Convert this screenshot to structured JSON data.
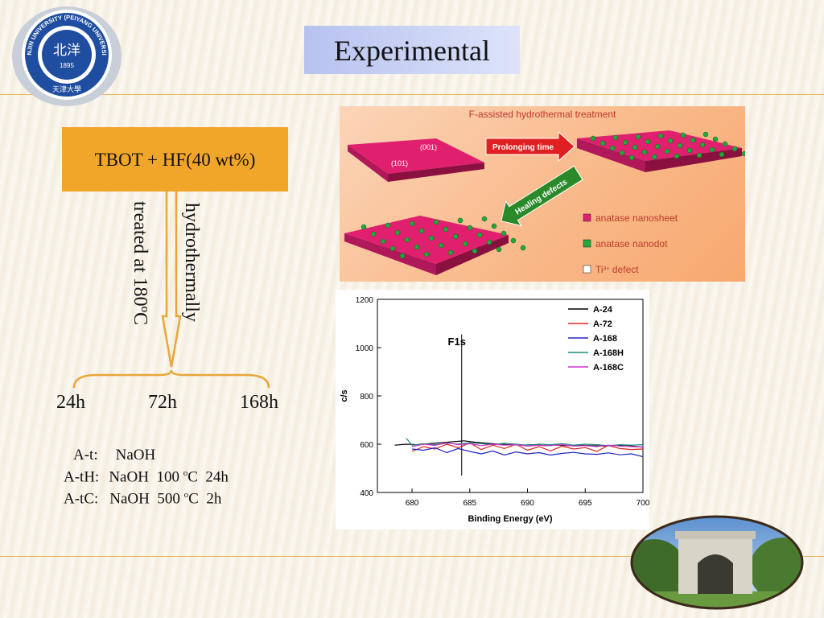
{
  "slide": {
    "title": "Experimental"
  },
  "logo": {
    "icon": "university-seal-icon",
    "text_top": "TIANJIN UNIVERSITY (PEIYANG UNIVERSITY)",
    "text_center": "北洋",
    "year": "1895",
    "text_bottom": "天津大學"
  },
  "flow": {
    "recipe": "TBOT + HF(40 wt%)",
    "condition_right": "hydrothermally",
    "condition_left": "treated at 180ºC",
    "times": [
      "24h",
      "72h",
      "168h"
    ]
  },
  "samples": [
    {
      "name": "A-t:",
      "treatment": "NaOH",
      "temp": "",
      "unit": "",
      "time": ""
    },
    {
      "name": "A-tH:",
      "treatment": "NaOH",
      "temp": "100",
      "unit": "C",
      "time": "24h"
    },
    {
      "name": "A-tC:",
      "treatment": "NaOH",
      "temp": "500",
      "unit": "C",
      "time": "2h"
    }
  ],
  "scheme": {
    "title": "F-assisted hydrothermal treatment",
    "facet_top": "(001)",
    "facet_side": "(101)",
    "arrow_forward": "Prolonging time",
    "arrow_back": "Healing defects",
    "legend": [
      {
        "label": "anatase nanosheet",
        "color": "#e0206e"
      },
      {
        "label": "anatase nanodot",
        "color": "#22a83a"
      },
      {
        "label": "Ti",
        "sup": "3+",
        "suffix": " defect",
        "color": "#ffffff"
      }
    ]
  },
  "chart_data": {
    "type": "line",
    "xlabel": "Binding Energy (eV)",
    "ylabel": "c/s",
    "xlim": [
      677,
      700
    ],
    "ylim": [
      400,
      1200
    ],
    "xticks": [
      680,
      685,
      690,
      695,
      700
    ],
    "yticks": [
      400,
      600,
      800,
      1000,
      1200
    ],
    "annotation": {
      "text": "F1s",
      "x": 684.3
    },
    "legend_position": "top-right",
    "series": [
      {
        "name": "A-24",
        "color": "#000000",
        "x": [
          678.5,
          679.5,
          680.5,
          681.5,
          682.5,
          683.5,
          684.5,
          685.5,
          686.5,
          687.5,
          688.5,
          689.5,
          690.5,
          691.5,
          692.5,
          693.5,
          694.5,
          695.5,
          696.5,
          697.5,
          698.5,
          699.5,
          700
        ],
        "y": [
          596,
          600,
          598,
          602,
          606,
          610,
          614,
          608,
          604,
          600,
          598,
          596,
          598,
          594,
          596,
          594,
          596,
          594,
          592,
          594,
          596,
          590,
          588
        ]
      },
      {
        "name": "A-72",
        "color": "#e02020",
        "x": [
          680,
          681,
          682,
          683,
          684,
          685,
          686,
          687,
          688,
          689,
          690,
          691,
          692,
          693,
          694,
          695,
          696,
          697,
          698,
          699,
          700
        ],
        "y": [
          570,
          590,
          580,
          600,
          585,
          605,
          578,
          596,
          582,
          600,
          575,
          590,
          572,
          592,
          580,
          586,
          570,
          595,
          582,
          578,
          580
        ]
      },
      {
        "name": "A-168",
        "color": "#2020c0",
        "x": [
          680,
          681,
          682,
          683,
          684,
          685,
          686,
          687,
          688,
          689,
          690,
          691,
          692,
          693,
          694,
          695,
          696,
          697,
          698,
          699,
          700
        ],
        "y": [
          580,
          575,
          585,
          565,
          582,
          570,
          560,
          572,
          555,
          568,
          560,
          565,
          555,
          562,
          566,
          560,
          558,
          564,
          556,
          560,
          548
        ]
      },
      {
        "name": "A-168H",
        "color": "#1a8a7a",
        "x": [
          679.5,
          680,
          681,
          682,
          683,
          684,
          685,
          686,
          687,
          688,
          689,
          690,
          691,
          692,
          693,
          694,
          695,
          696,
          697,
          698,
          699,
          700
        ],
        "y": [
          625,
          596,
          602,
          598,
          604,
          600,
          606,
          602,
          598,
          604,
          600,
          596,
          600,
          598,
          602,
          596,
          600,
          598,
          594,
          598,
          596,
          598
        ]
      },
      {
        "name": "A-168C",
        "color": "#d030d0",
        "x": [
          680,
          681,
          682,
          683,
          684,
          685,
          686,
          687,
          688,
          689,
          690,
          691,
          692,
          693,
          694,
          695,
          696,
          697,
          698,
          699,
          700
        ],
        "y": [
          590,
          600,
          595,
          606,
          598,
          602,
          594,
          600,
          596,
          598,
          592,
          596,
          594,
          598,
          592,
          594,
          590,
          596,
          592,
          590,
          588
        ]
      }
    ]
  }
}
